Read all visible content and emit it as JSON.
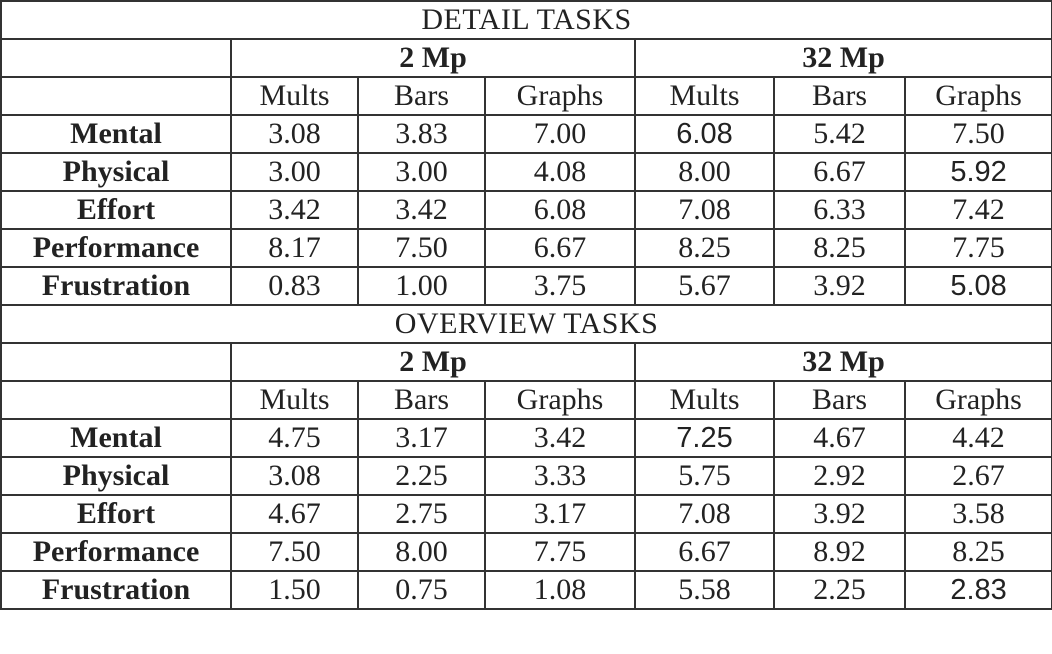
{
  "columns": [
    "Mults",
    "Bars",
    "Graphs",
    "Mults",
    "Bars",
    "Graphs"
  ],
  "groups": [
    "2 Mp",
    "32 Mp"
  ],
  "sections": [
    {
      "title": "DETAIL TASKS",
      "rows": [
        {
          "label": "Mental",
          "values": [
            "3.08",
            "3.83",
            "7.00",
            "6.08",
            "5.42",
            "7.50"
          ]
        },
        {
          "label": "Physical",
          "values": [
            "3.00",
            "3.00",
            "4.08",
            "8.00",
            "6.67",
            "5.92"
          ]
        },
        {
          "label": "Effort",
          "values": [
            "3.42",
            "3.42",
            "6.08",
            "7.08",
            "6.33",
            "7.42"
          ]
        },
        {
          "label": "Performance",
          "values": [
            "8.17",
            "7.50",
            "6.67",
            "8.25",
            "8.25",
            "7.75"
          ]
        },
        {
          "label": "Frustration",
          "values": [
            "0.83",
            "1.00",
            "3.75",
            "5.67",
            "3.92",
            "5.08"
          ]
        }
      ]
    },
    {
      "title": "OVERVIEW TASKS",
      "rows": [
        {
          "label": "Mental",
          "values": [
            "4.75",
            "3.17",
            "3.42",
            "7.25",
            "4.67",
            "4.42"
          ]
        },
        {
          "label": "Physical",
          "values": [
            "3.08",
            "2.25",
            "3.33",
            "5.75",
            "2.92",
            "2.67"
          ]
        },
        {
          "label": "Effort",
          "values": [
            "4.67",
            "2.75",
            "3.17",
            "7.08",
            "3.92",
            "3.58"
          ]
        },
        {
          "label": "Performance",
          "values": [
            "7.50",
            "8.00",
            "7.75",
            "6.67",
            "8.92",
            "8.25"
          ]
        },
        {
          "label": "Frustration",
          "values": [
            "1.50",
            "0.75",
            "1.08",
            "5.58",
            "2.25",
            "2.83"
          ]
        }
      ]
    }
  ]
}
